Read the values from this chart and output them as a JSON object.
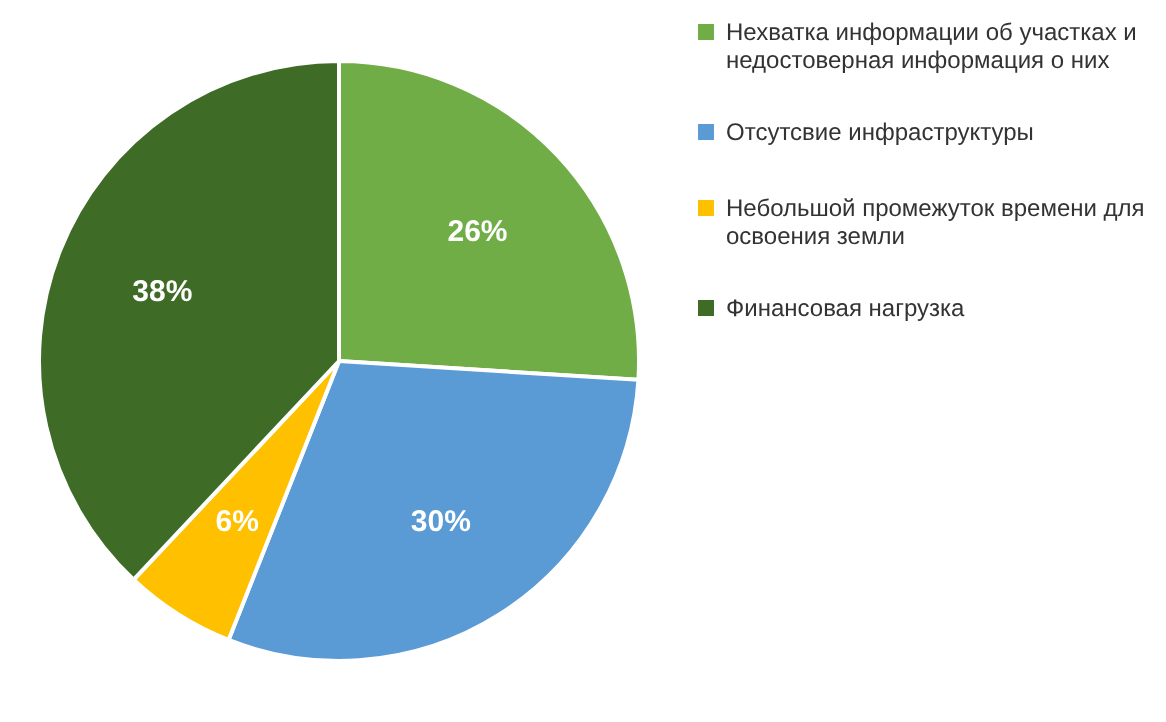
{
  "chart_data": {
    "type": "pie",
    "categories": [
      "Нехватка информации об участках и недостоверная информация о них",
      "Отсутсвие инфраструктуры",
      "Небольшой промежуток времени для освоения земли",
      "Финансовая нагрузка"
    ],
    "values": [
      26,
      30,
      6,
      38
    ],
    "colors": [
      "#70ad47",
      "#5b9bd5",
      "#ffc000",
      "#3e6b26"
    ],
    "value_labels": [
      "26%",
      "30%",
      "6%",
      "38%"
    ],
    "legend": "right"
  }
}
